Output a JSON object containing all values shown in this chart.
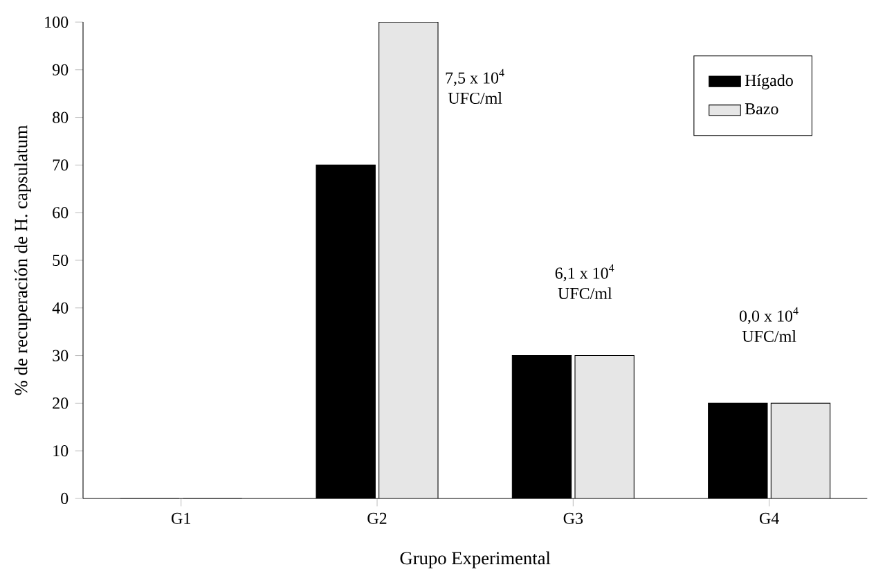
{
  "chart_data": {
    "type": "bar",
    "xlabel": "Grupo Experimental",
    "ylabel": "% de recuperación de H. capsulatum",
    "categories": [
      "G1",
      "G2",
      "G3",
      "G4"
    ],
    "series": [
      {
        "name": "Hígado",
        "color": "#000000",
        "values": [
          0,
          70,
          30,
          20
        ]
      },
      {
        "name": "Bazo",
        "color": "#e6e6e6",
        "values": [
          0,
          100,
          30,
          20
        ]
      }
    ],
    "ylim": [
      0,
      100
    ],
    "yticks": [
      0,
      10,
      20,
      30,
      40,
      50,
      60,
      70,
      80,
      90,
      100
    ],
    "legend": "top right",
    "annotations": [
      "7,5 x 10$^{4}$ UFC/ml",
      "6,1 x 10$^{4}$ UFC/ml",
      "0,0 x 10$^{4}$ UFC/ml"
    ]
  }
}
